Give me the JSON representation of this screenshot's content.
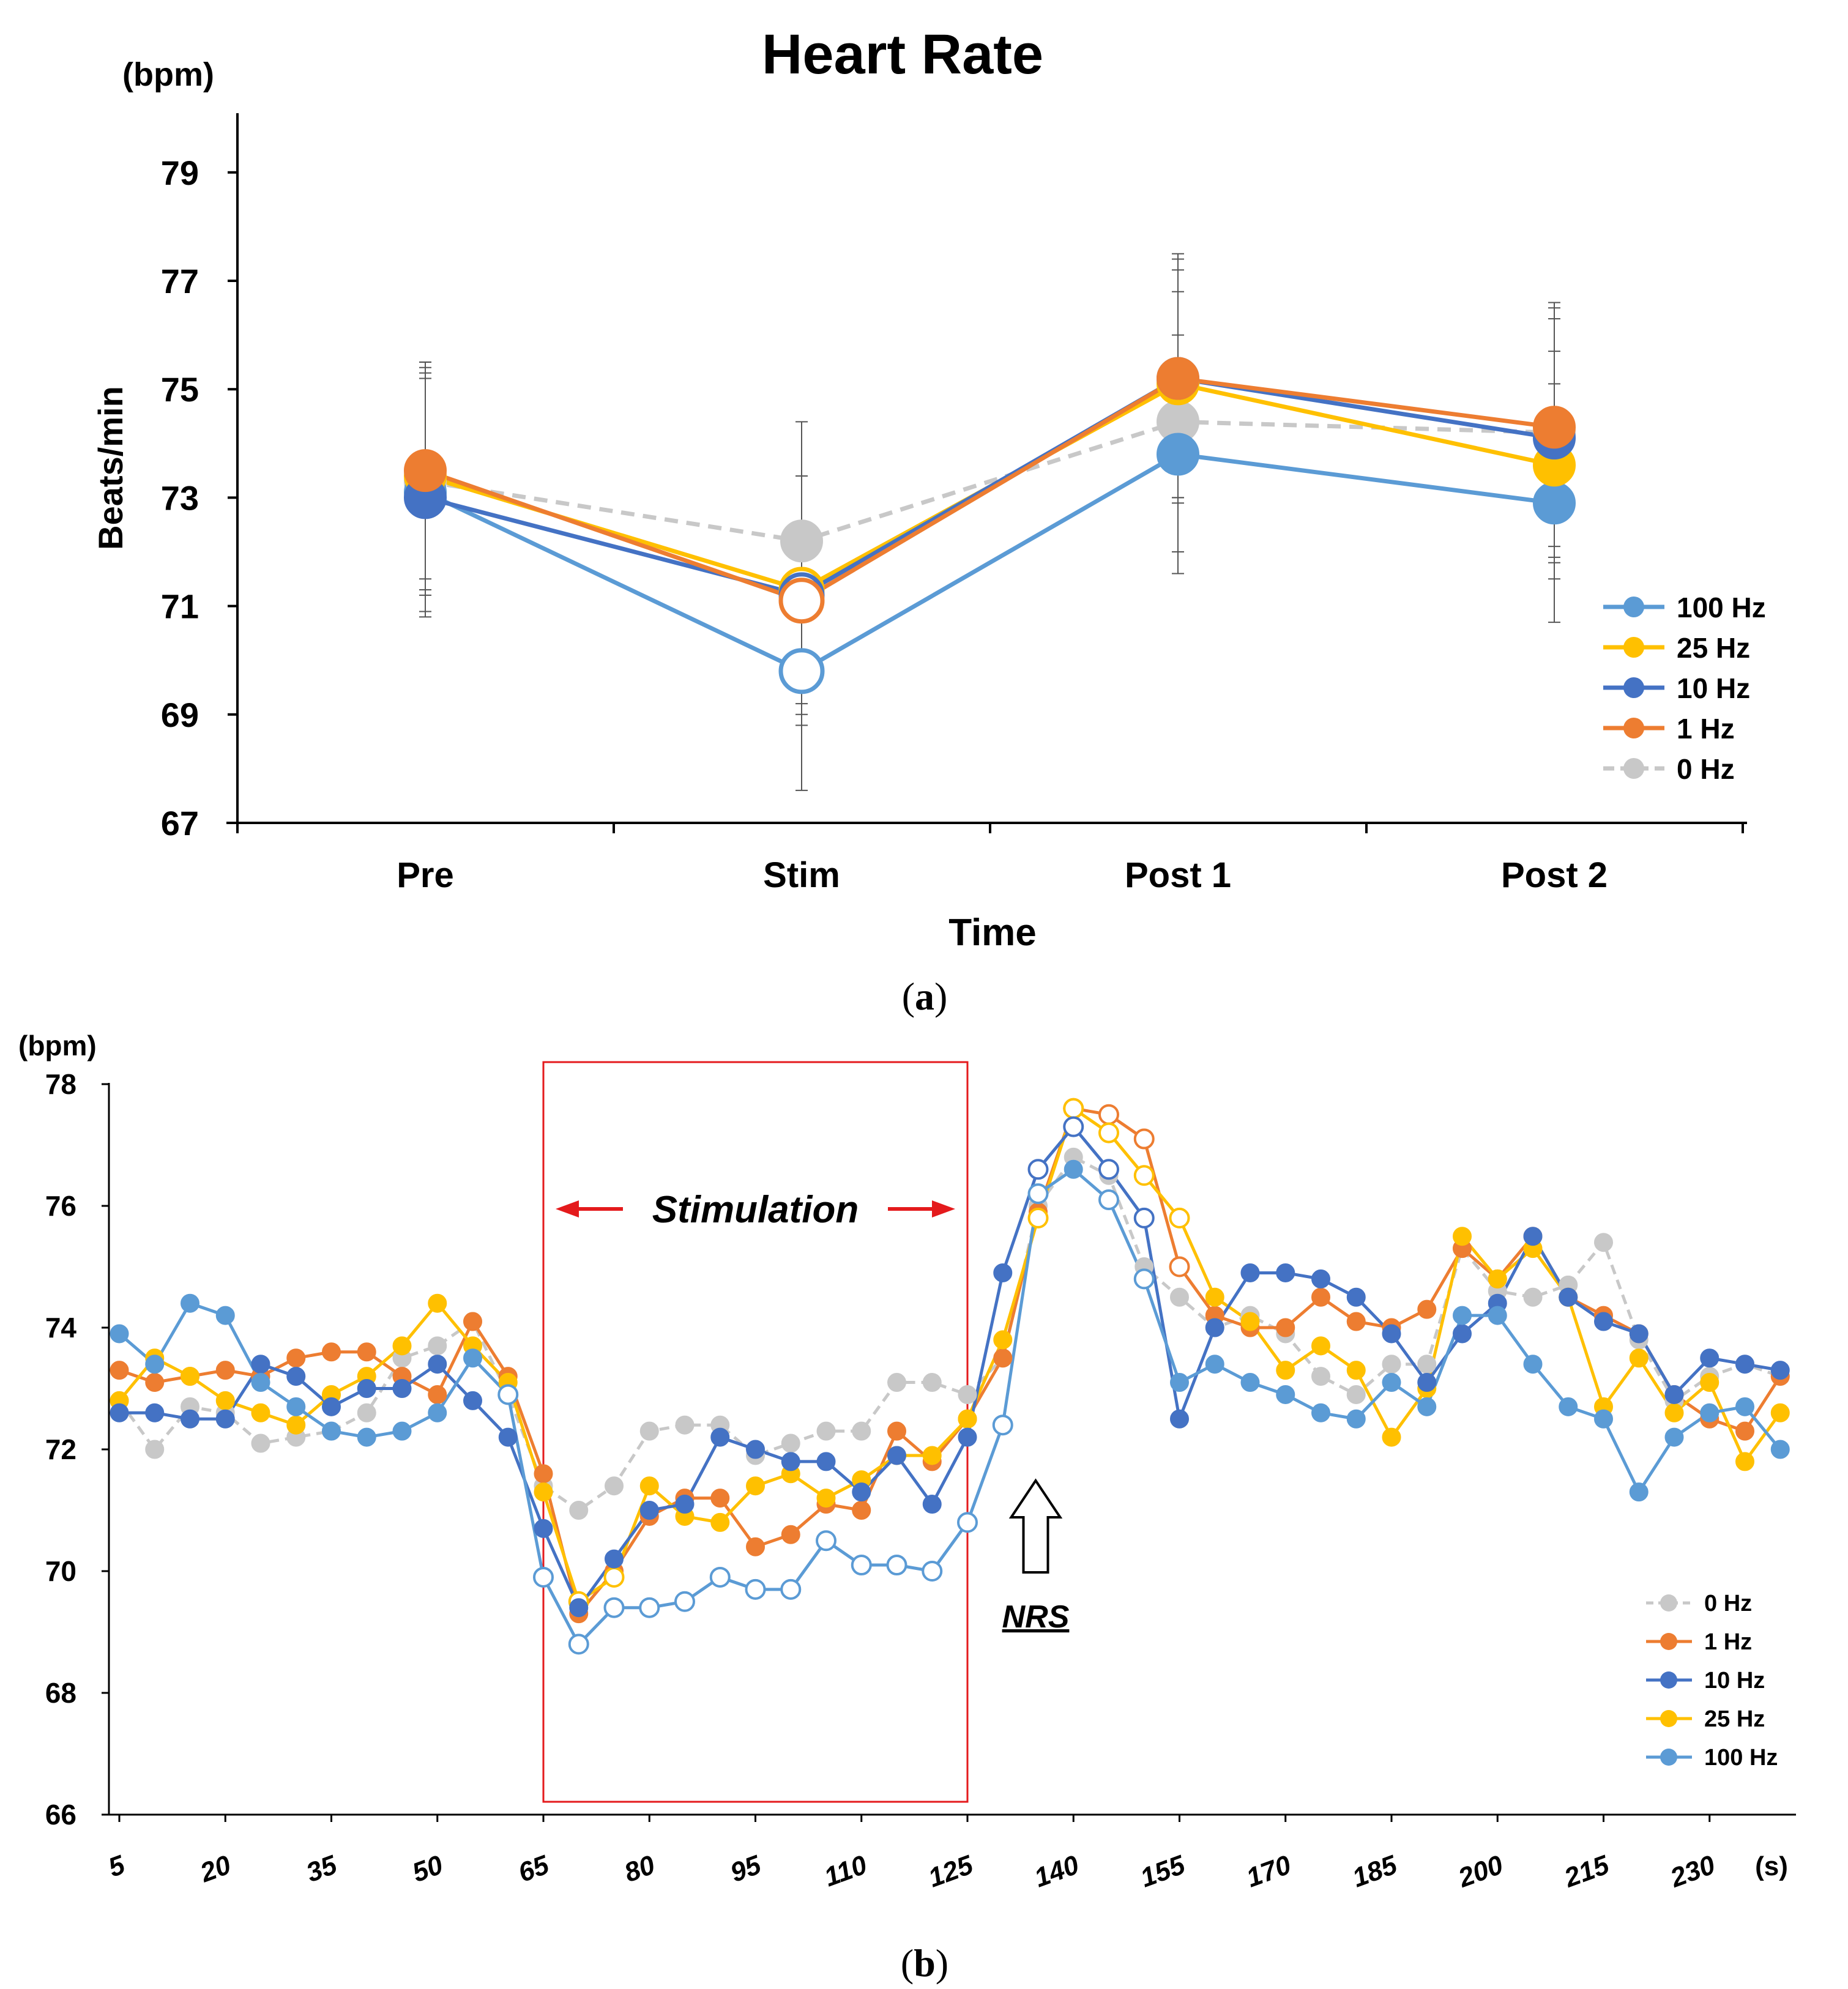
{
  "figure": {
    "label_a": "a",
    "label_b": "b"
  },
  "colors": {
    "100 Hz": "#5B9BD5",
    "25 Hz": "#FFC000",
    "10 Hz": "#4472C4",
    "1 Hz": "#ED7D31",
    "0 Hz": "#C8C8C8"
  },
  "chart_data": [
    {
      "type": "line",
      "title": "Heart Rate",
      "unit_label": "(bpm)",
      "ylabel": "Beats/min",
      "xlabel": "Time",
      "categories": [
        "Pre",
        "Stim",
        "Post 1",
        "Post 2"
      ],
      "ylim": [
        67,
        80
      ],
      "yticks": [
        67,
        69,
        71,
        73,
        75,
        77,
        79
      ],
      "legend_position": "right",
      "legend_order": [
        "100 Hz",
        "25 Hz",
        "10 Hz",
        "1 Hz",
        "0 Hz"
      ],
      "series": [
        {
          "name": "100 Hz",
          "values": [
            73.1,
            69.8,
            73.8,
            72.9
          ],
          "error": [
            2.2,
            2.2,
            2.2,
            2.2
          ],
          "hollow": [
            false,
            true,
            false,
            false
          ],
          "dashed": false
        },
        {
          "name": "25 Hz",
          "values": [
            73.4,
            71.3,
            75.1,
            73.6
          ],
          "error": [
            2.1,
            2.1,
            2.1,
            2.1
          ],
          "hollow": [
            false,
            true,
            false,
            false
          ],
          "dashed": false
        },
        {
          "name": "10 Hz",
          "values": [
            73.0,
            71.2,
            75.2,
            74.1
          ],
          "error": [
            2.2,
            2.2,
            2.2,
            2.2
          ],
          "hollow": [
            false,
            true,
            false,
            false
          ],
          "dashed": false
        },
        {
          "name": "1 Hz",
          "values": [
            73.5,
            71.1,
            75.2,
            74.3
          ],
          "error": [
            2.0,
            2.3,
            2.3,
            2.2
          ],
          "hollow": [
            false,
            true,
            false,
            false
          ],
          "dashed": false
        },
        {
          "name": "0 Hz",
          "values": [
            73.3,
            72.2,
            74.4,
            74.2
          ],
          "error": [
            2.1,
            2.2,
            2.4,
            2.4
          ],
          "hollow": [
            false,
            false,
            false,
            false
          ],
          "dashed": true
        }
      ]
    },
    {
      "type": "line",
      "unit_label": "(bpm)",
      "x_unit_label": "(s)",
      "x": [
        5,
        10,
        15,
        20,
        25,
        30,
        35,
        40,
        45,
        50,
        55,
        60,
        65,
        70,
        75,
        80,
        85,
        90,
        95,
        100,
        105,
        110,
        115,
        120,
        125,
        130,
        135,
        140,
        145,
        150,
        155,
        160,
        165,
        170,
        175,
        180,
        185,
        190,
        195,
        200,
        205,
        210,
        215,
        220,
        225,
        230,
        235,
        240
      ],
      "xticks": [
        5,
        20,
        35,
        50,
        65,
        80,
        95,
        110,
        125,
        140,
        155,
        170,
        185,
        200,
        215,
        230
      ],
      "ylim": [
        66,
        78
      ],
      "yticks": [
        66,
        68,
        70,
        72,
        74,
        76,
        78
      ],
      "stimulation_window": [
        65,
        125
      ],
      "stimulation_label": "Stimulation",
      "nrs_label": "NRS",
      "nrs_x": 135,
      "legend_position": "bottom-right",
      "legend_order": [
        "0 Hz",
        "1 Hz",
        "10 Hz",
        "25 Hz",
        "100 Hz"
      ],
      "hollow_ranges": {
        "0 Hz": [],
        "1 Hz": [
          [
            140,
            155
          ]
        ],
        "10 Hz": [
          [
            135,
            150
          ]
        ],
        "25 Hz": [
          [
            70,
            75
          ],
          [
            135,
            155
          ]
        ],
        "100 Hz": [
          [
            60,
            135
          ],
          [
            145,
            150
          ]
        ]
      },
      "series": [
        {
          "name": "0 Hz",
          "dashed": true,
          "values": [
            72.8,
            72.0,
            72.7,
            72.6,
            72.1,
            72.2,
            72.3,
            72.6,
            73.5,
            73.7,
            74.1,
            72.9,
            71.4,
            71.0,
            71.4,
            72.3,
            72.4,
            72.4,
            71.9,
            72.1,
            72.3,
            72.3,
            73.1,
            73.1,
            72.9,
            73.5,
            76.0,
            76.8,
            76.5,
            75.0,
            74.5,
            74.0,
            74.2,
            73.9,
            73.2,
            72.9,
            73.4,
            73.4,
            75.3,
            74.6,
            74.5,
            74.7,
            75.4,
            73.8,
            72.8,
            73.2,
            73.4,
            73.2
          ]
        },
        {
          "name": "1 Hz",
          "dashed": false,
          "values": [
            73.3,
            73.1,
            73.2,
            73.3,
            73.2,
            73.5,
            73.6,
            73.6,
            73.2,
            72.9,
            74.1,
            73.2,
            71.6,
            69.3,
            70.0,
            70.9,
            71.2,
            71.2,
            70.4,
            70.6,
            71.1,
            71.0,
            72.3,
            71.8,
            72.5,
            73.5,
            75.9,
            77.6,
            77.5,
            77.1,
            75.0,
            74.2,
            74.0,
            74.0,
            74.5,
            74.1,
            74.0,
            74.3,
            75.3,
            74.8,
            75.5,
            74.5,
            74.2,
            73.9,
            72.9,
            72.5,
            72.3,
            73.2
          ]
        },
        {
          "name": "10 Hz",
          "dashed": false,
          "values": [
            72.6,
            72.6,
            72.5,
            72.5,
            73.4,
            73.2,
            72.7,
            73.0,
            73.0,
            73.4,
            72.8,
            72.2,
            70.7,
            69.4,
            70.2,
            71.0,
            71.1,
            72.2,
            72.0,
            71.8,
            71.8,
            71.3,
            71.9,
            71.1,
            72.2,
            74.9,
            76.6,
            77.3,
            76.6,
            75.8,
            72.5,
            74.0,
            74.9,
            74.9,
            74.8,
            74.5,
            73.9,
            73.1,
            73.9,
            74.4,
            75.5,
            74.5,
            74.1,
            73.9,
            72.9,
            73.5,
            73.4,
            73.3
          ]
        },
        {
          "name": "25 Hz",
          "dashed": false,
          "values": [
            72.8,
            73.5,
            73.2,
            72.8,
            72.6,
            72.4,
            72.9,
            73.2,
            73.7,
            74.4,
            73.7,
            73.1,
            71.3,
            69.5,
            69.9,
            71.4,
            70.9,
            70.8,
            71.4,
            71.6,
            71.2,
            71.5,
            71.9,
            71.9,
            72.5,
            73.8,
            75.8,
            77.6,
            77.2,
            76.5,
            75.8,
            74.5,
            74.1,
            73.3,
            73.7,
            73.3,
            72.2,
            73.0,
            75.5,
            74.8,
            75.3,
            74.5,
            72.7,
            73.5,
            72.6,
            73.1,
            71.8,
            72.6
          ]
        },
        {
          "name": "100 Hz",
          "dashed": false,
          "values": [
            73.9,
            73.4,
            74.4,
            74.2,
            73.1,
            72.7,
            72.3,
            72.2,
            72.3,
            72.6,
            73.5,
            72.9,
            69.9,
            68.8,
            69.4,
            69.4,
            69.5,
            69.9,
            69.7,
            69.7,
            70.5,
            70.1,
            70.1,
            70.0,
            70.8,
            72.4,
            76.2,
            76.6,
            76.1,
            74.8,
            73.1,
            73.4,
            73.1,
            72.9,
            72.6,
            72.5,
            73.1,
            72.7,
            74.2,
            74.2,
            73.4,
            72.7,
            72.5,
            71.3,
            72.2,
            72.6,
            72.7,
            72.0
          ]
        }
      ]
    }
  ]
}
